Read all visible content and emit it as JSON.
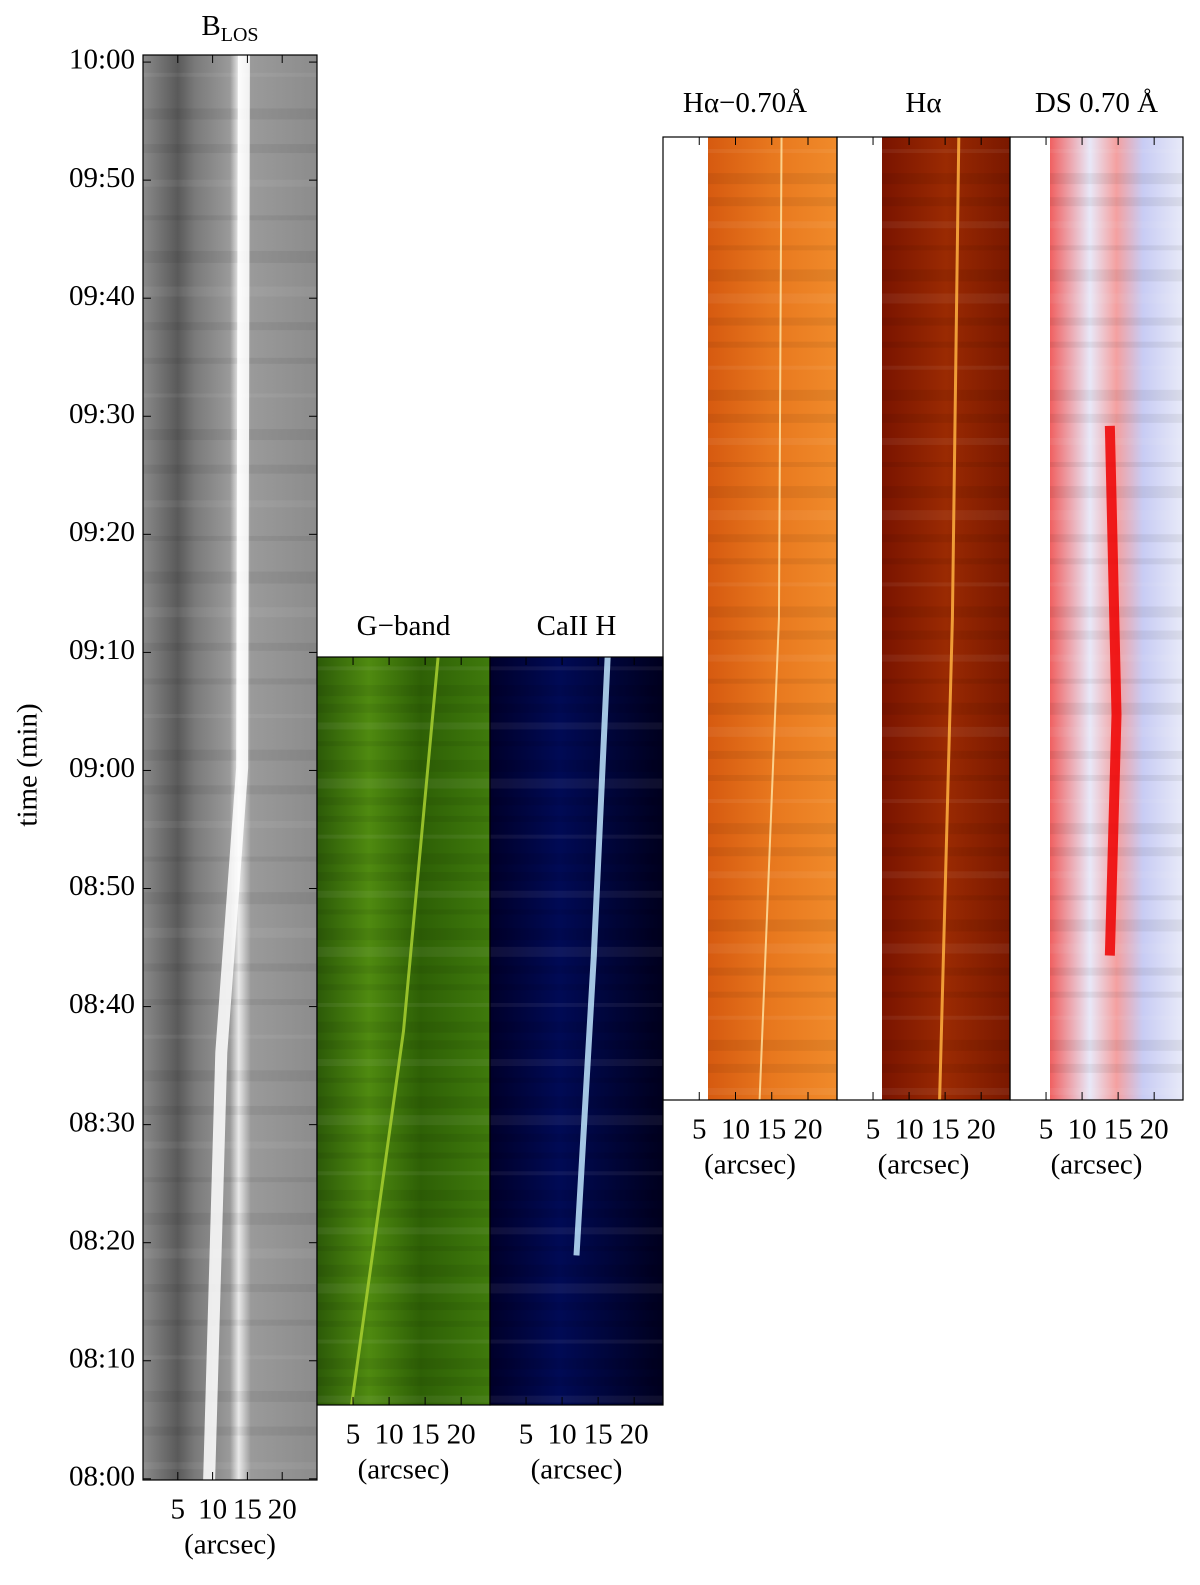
{
  "chart_data": {
    "type": "time-distance",
    "ylabel": "time (min)",
    "ylim": [
      479.9,
      600.6
    ],
    "yticks": [
      {
        "value": 480,
        "label": "08:00"
      },
      {
        "value": 490,
        "label": "08:10"
      },
      {
        "value": 500,
        "label": "08:20"
      },
      {
        "value": 510,
        "label": "08:30"
      },
      {
        "value": 520,
        "label": "08:40"
      },
      {
        "value": 530,
        "label": "08:50"
      },
      {
        "value": 540,
        "label": "09:00"
      },
      {
        "value": 550,
        "label": "09:10"
      },
      {
        "value": 560,
        "label": "09:20"
      },
      {
        "value": 570,
        "label": "09:30"
      },
      {
        "value": 580,
        "label": "09:40"
      },
      {
        "value": 590,
        "label": "09:50"
      },
      {
        "value": 600,
        "label": "10:00"
      }
    ],
    "panels": [
      {
        "title": "B",
        "title_sub": "LOS",
        "xlabel": "(arcsec)",
        "xlim": [
          0,
          25
        ],
        "xticks": [
          5,
          10,
          15,
          20
        ]
      },
      {
        "title": "G−band",
        "xlabel": "(arcsec)",
        "xlim": [
          0,
          24
        ],
        "xticks": [
          5,
          10,
          15,
          20
        ]
      },
      {
        "title": "CaII H",
        "xlabel": "(arcsec)",
        "xlim": [
          0,
          24
        ],
        "xticks": [
          5,
          10,
          15,
          20
        ]
      },
      {
        "title": "Hα−0.70Å",
        "xlabel": "(arcsec)",
        "xlim": [
          0,
          24
        ],
        "xticks": [
          5,
          10,
          15,
          20
        ]
      },
      {
        "title": "Hα",
        "xlabel": "(arcsec)",
        "xlim": [
          0,
          24
        ],
        "xticks": [
          5,
          10,
          15,
          20
        ]
      },
      {
        "title": "DS 0.70 Å",
        "xlabel": "(arcsec)",
        "xlim": [
          0,
          24
        ],
        "xticks": [
          5,
          10,
          15,
          20
        ]
      }
    ]
  }
}
